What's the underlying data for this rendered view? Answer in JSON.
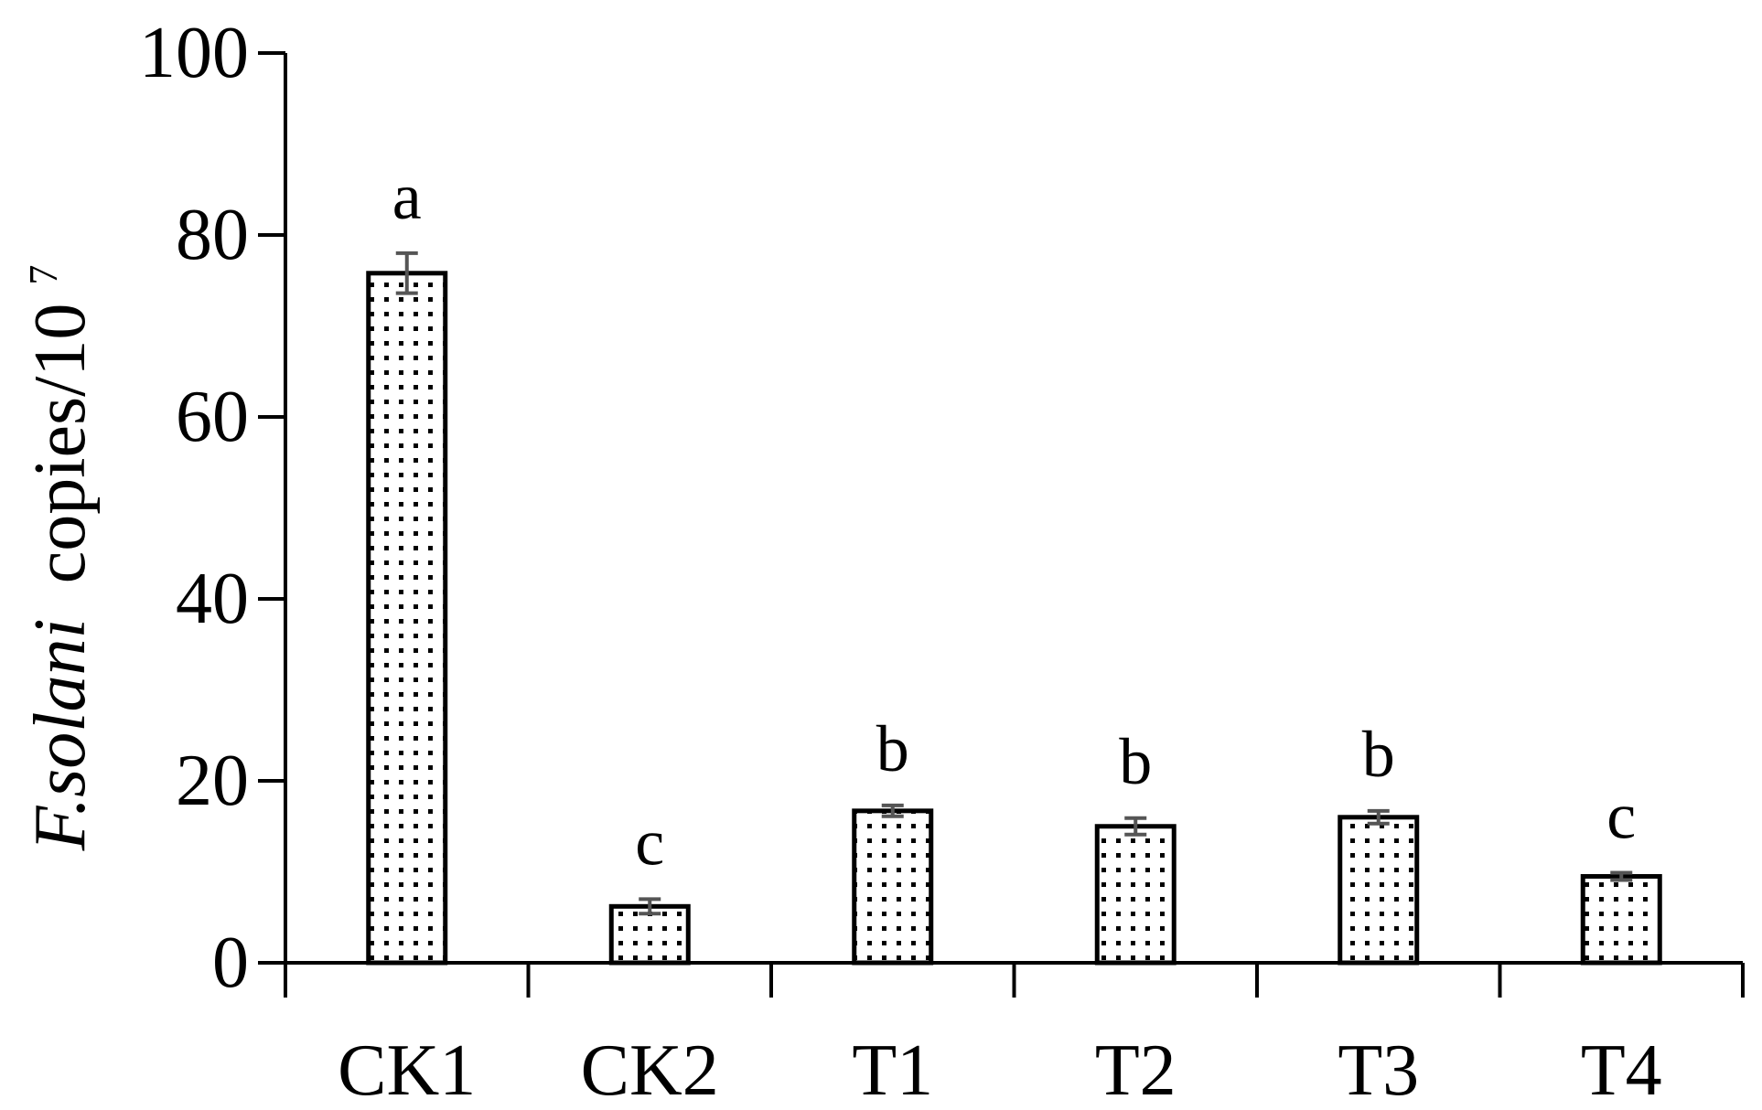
{
  "chart_data": {
    "type": "bar",
    "categories": [
      "CK1",
      "CK2",
      "T1",
      "T2",
      "T3",
      "T4"
    ],
    "values": [
      75.8,
      6.2,
      16.7,
      15.0,
      16.0,
      9.5
    ],
    "errors": [
      2.2,
      0.8,
      0.6,
      0.9,
      0.7,
      0.4
    ],
    "significance": [
      "a",
      "c",
      "b",
      "b",
      "b",
      "c"
    ],
    "title": "",
    "xlabel": "",
    "ylabel_italic": "F.solani",
    "ylabel_rest": "copies/10",
    "ylabel_sup": "7",
    "ylim": [
      0,
      100
    ],
    "yticks": [
      0,
      20,
      40,
      60,
      80,
      100
    ],
    "grid": false,
    "legend": "none",
    "bar_fill": "dotted"
  }
}
